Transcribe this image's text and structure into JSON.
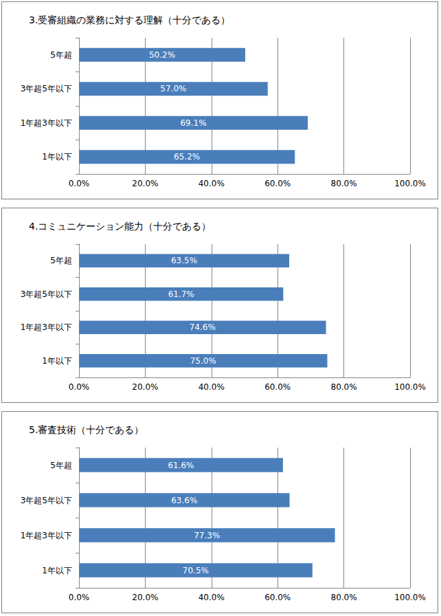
{
  "chart_data": [
    {
      "type": "bar",
      "orientation": "horizontal",
      "title": "3.受審組織の業務に対する理解（十分である）",
      "categories": [
        "1年以下",
        "1年超3年以下",
        "3年超5年以下",
        "5年超"
      ],
      "values": [
        65.2,
        69.1,
        57.0,
        50.2
      ],
      "value_labels": [
        "65.2%",
        "69.1%",
        "57.0%",
        "50.2%"
      ],
      "data_labels": true,
      "color": "#4a7ebb",
      "grid": true,
      "xlim": [
        0,
        100
      ],
      "xticks": [
        {
          "value": 0,
          "label": "0.0%"
        },
        {
          "value": 20,
          "label": "20.0%"
        },
        {
          "value": 40,
          "label": "40.0%"
        },
        {
          "value": 60,
          "label": "60.0%"
        },
        {
          "value": 80,
          "label": "80.0%"
        },
        {
          "value": 100,
          "label": "100.0%"
        }
      ]
    },
    {
      "type": "bar",
      "orientation": "horizontal",
      "title": "4.コミュニケーション能力（十分である）",
      "categories": [
        "1年以下",
        "1年超3年以下",
        "3年超5年以下",
        "5年超"
      ],
      "values": [
        75.0,
        74.6,
        61.7,
        63.5
      ],
      "value_labels": [
        "75.0%",
        "74.6%",
        "61.7%",
        "63.5%"
      ],
      "data_labels": true,
      "color": "#4a7ebb",
      "grid": true,
      "xlim": [
        0,
        100
      ],
      "xticks": [
        {
          "value": 0,
          "label": "0.0%"
        },
        {
          "value": 20,
          "label": "20.0%"
        },
        {
          "value": 40,
          "label": "40.0%"
        },
        {
          "value": 60,
          "label": "60.0%"
        },
        {
          "value": 80,
          "label": "80.0%"
        },
        {
          "value": 100,
          "label": "100.0%"
        }
      ]
    },
    {
      "type": "bar",
      "orientation": "horizontal",
      "title": "5.審査技術（十分である）",
      "categories": [
        "1年以下",
        "1年超3年以下",
        "3年超5年以下",
        "5年超"
      ],
      "values": [
        70.5,
        77.3,
        63.6,
        61.6
      ],
      "value_labels": [
        "70.5%",
        "77.3%",
        "63.6%",
        "61.6%"
      ],
      "data_labels": true,
      "color": "#4a7ebb",
      "grid": true,
      "xlim": [
        0,
        100
      ],
      "xticks": [
        {
          "value": 0,
          "label": "0.0%"
        },
        {
          "value": 20,
          "label": "20.0%"
        },
        {
          "value": 40,
          "label": "40.0%"
        },
        {
          "value": 60,
          "label": "60.0%"
        },
        {
          "value": 80,
          "label": "80.0%"
        },
        {
          "value": 100,
          "label": "100.0%"
        }
      ]
    }
  ]
}
